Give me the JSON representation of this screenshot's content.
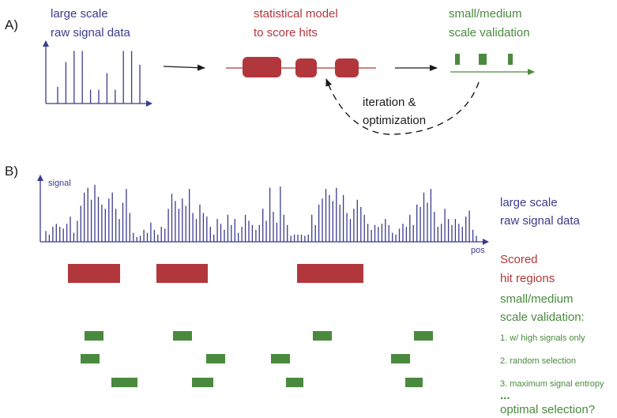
{
  "colors": {
    "blue": "#3a3c8c",
    "red": "#b2373c",
    "green": "#4a8a3e",
    "dark": "#1a1a1a"
  },
  "panel_a": {
    "label": "A)",
    "raw_title_line1": "large scale",
    "raw_title_line2": "raw signal data",
    "model_title_line1": "statistical model",
    "model_title_line2": "to score hits",
    "validation_title_line1": "small/medium",
    "validation_title_line2": "scale validation",
    "loop_line1": "iteration &",
    "loop_line2": "optimization"
  },
  "panel_b": {
    "label": "B)",
    "y_axis_label": "signal",
    "x_axis_label": "pos",
    "raw_line1": "large scale",
    "raw_line2": "raw signal data",
    "hits_line1": "Scored",
    "hits_line2": "hit regions",
    "validation_line1": "small/medium",
    "validation_line2": "scale validation:",
    "strategies": [
      "1. w/ high signals only",
      "2. random selection",
      "3. maximum signal entropy"
    ],
    "ellipsis": "...",
    "optimal": "optimal selection?"
  },
  "panel_a_signal": [
    0.3,
    0.75,
    0.95,
    0.95,
    0.25,
    0.25,
    0.55,
    0.25,
    0.95,
    0.95,
    0.7
  ],
  "panel_b_signal": [
    0.18,
    0.12,
    0.25,
    0.3,
    0.25,
    0.22,
    0.3,
    0.42,
    0.15,
    0.35,
    0.6,
    0.82,
    0.9,
    0.7,
    0.95,
    0.75,
    0.62,
    0.55,
    0.72,
    0.82,
    0.55,
    0.38,
    0.65,
    0.88,
    0.48,
    0.15,
    0.08,
    0.1,
    0.2,
    0.15,
    0.32,
    0.2,
    0.12,
    0.25,
    0.22,
    0.55,
    0.8,
    0.68,
    0.55,
    0.72,
    0.6,
    0.88,
    0.48,
    0.38,
    0.62,
    0.48,
    0.42,
    0.25,
    0.12,
    0.38,
    0.3,
    0.2,
    0.45,
    0.28,
    0.38,
    0.15,
    0.25,
    0.45,
    0.35,
    0.28,
    0.2,
    0.28,
    0.55,
    0.35,
    0.9,
    0.5,
    0.32,
    0.92,
    0.45,
    0.28,
    0.1,
    0.12,
    0.12,
    0.12,
    0.1,
    0.12,
    0.45,
    0.28,
    0.62,
    0.72,
    0.88,
    0.78,
    0.68,
    0.9,
    0.62,
    0.78,
    0.48,
    0.38,
    0.55,
    0.7,
    0.58,
    0.45,
    0.3,
    0.2,
    0.28,
    0.25,
    0.3,
    0.38,
    0.28,
    0.15,
    0.12,
    0.22,
    0.3,
    0.25,
    0.45,
    0.28,
    0.62,
    0.58,
    0.82,
    0.65,
    0.88,
    0.5,
    0.25,
    0.3,
    0.55,
    0.38,
    0.28,
    0.38,
    0.3,
    0.25,
    0.42,
    0.52,
    0.2,
    0.1
  ]
}
